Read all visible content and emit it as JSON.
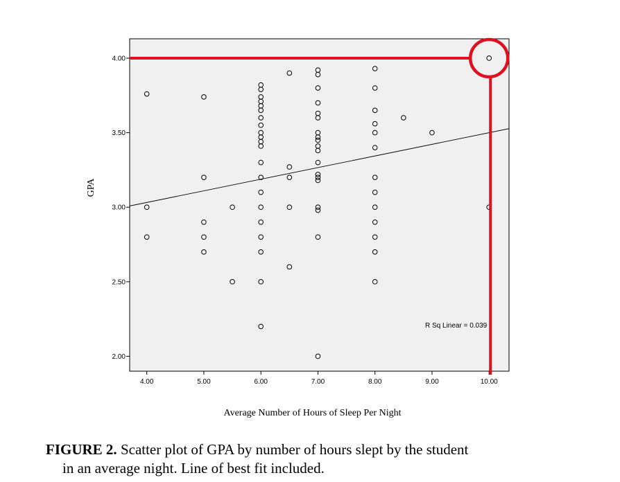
{
  "chart_data": {
    "type": "scatter",
    "xlabel": "Average Number of Hours of Sleep Per Night",
    "ylabel": "GPA",
    "xlim": [
      3.7,
      10.35
    ],
    "ylim": [
      1.9,
      4.13
    ],
    "x_ticks": [
      4,
      5,
      6,
      7,
      8,
      9,
      10
    ],
    "x_tick_labels": [
      "4.00",
      "5.00",
      "6.00",
      "7.00",
      "8.00",
      "9.00",
      "10.00"
    ],
    "y_ticks": [
      2,
      2.5,
      3,
      3.5,
      4
    ],
    "y_tick_labels": [
      "2.00",
      "2.50",
      "3.00",
      "3.50",
      "4.00"
    ],
    "grid": false,
    "fit_line": {
      "intercept": 2.72,
      "slope": 0.078
    },
    "annotation": "R Sq Linear = 0.039",
    "highlight_point": {
      "x": 10,
      "y": 4.0,
      "color": "#e01020"
    },
    "points": [
      {
        "x": 4,
        "y": 3.76
      },
      {
        "x": 4,
        "y": 3.0
      },
      {
        "x": 4,
        "y": 2.8
      },
      {
        "x": 5,
        "y": 3.74
      },
      {
        "x": 5,
        "y": 3.2
      },
      {
        "x": 5,
        "y": 2.9
      },
      {
        "x": 5,
        "y": 2.8
      },
      {
        "x": 5,
        "y": 2.7
      },
      {
        "x": 5.5,
        "y": 3.0
      },
      {
        "x": 5.5,
        "y": 2.5
      },
      {
        "x": 6,
        "y": 3.82
      },
      {
        "x": 6,
        "y": 3.79
      },
      {
        "x": 6,
        "y": 3.74
      },
      {
        "x": 6,
        "y": 3.71
      },
      {
        "x": 6,
        "y": 3.68
      },
      {
        "x": 6,
        "y": 3.65
      },
      {
        "x": 6,
        "y": 3.6
      },
      {
        "x": 6,
        "y": 3.55
      },
      {
        "x": 6,
        "y": 3.5
      },
      {
        "x": 6,
        "y": 3.47
      },
      {
        "x": 6,
        "y": 3.44
      },
      {
        "x": 6,
        "y": 3.41
      },
      {
        "x": 6,
        "y": 3.3
      },
      {
        "x": 6,
        "y": 3.2
      },
      {
        "x": 6,
        "y": 3.1
      },
      {
        "x": 6,
        "y": 3.0
      },
      {
        "x": 6,
        "y": 2.9
      },
      {
        "x": 6,
        "y": 2.8
      },
      {
        "x": 6,
        "y": 2.7
      },
      {
        "x": 6,
        "y": 2.5
      },
      {
        "x": 6,
        "y": 2.2
      },
      {
        "x": 6.5,
        "y": 3.9
      },
      {
        "x": 6.5,
        "y": 3.27
      },
      {
        "x": 6.5,
        "y": 3.2
      },
      {
        "x": 6.5,
        "y": 3.0
      },
      {
        "x": 6.5,
        "y": 2.6
      },
      {
        "x": 7,
        "y": 3.92
      },
      {
        "x": 7,
        "y": 3.89
      },
      {
        "x": 7,
        "y": 3.8
      },
      {
        "x": 7,
        "y": 3.7
      },
      {
        "x": 7,
        "y": 3.63
      },
      {
        "x": 7,
        "y": 3.6
      },
      {
        "x": 7,
        "y": 3.5
      },
      {
        "x": 7,
        "y": 3.47
      },
      {
        "x": 7,
        "y": 3.45
      },
      {
        "x": 7,
        "y": 3.41
      },
      {
        "x": 7,
        "y": 3.38
      },
      {
        "x": 7,
        "y": 3.3
      },
      {
        "x": 7,
        "y": 3.22
      },
      {
        "x": 7,
        "y": 3.2
      },
      {
        "x": 7,
        "y": 3.18
      },
      {
        "x": 7,
        "y": 3.0
      },
      {
        "x": 7,
        "y": 2.98
      },
      {
        "x": 7,
        "y": 2.8
      },
      {
        "x": 7,
        "y": 2.0
      },
      {
        "x": 8,
        "y": 3.93
      },
      {
        "x": 8,
        "y": 3.8
      },
      {
        "x": 8,
        "y": 3.65
      },
      {
        "x": 8,
        "y": 3.56
      },
      {
        "x": 8,
        "y": 3.5
      },
      {
        "x": 8,
        "y": 3.4
      },
      {
        "x": 8,
        "y": 3.2
      },
      {
        "x": 8,
        "y": 3.1
      },
      {
        "x": 8,
        "y": 3.0
      },
      {
        "x": 8,
        "y": 2.9
      },
      {
        "x": 8,
        "y": 2.8
      },
      {
        "x": 8,
        "y": 2.7
      },
      {
        "x": 8,
        "y": 2.5
      },
      {
        "x": 8.5,
        "y": 3.6
      },
      {
        "x": 9,
        "y": 3.5
      },
      {
        "x": 10,
        "y": 4.0
      },
      {
        "x": 10,
        "y": 3.0
      }
    ]
  },
  "caption": {
    "label": "FIGURE 2.",
    "text_line1": "Scatter plot of GPA by number of hours slept by the student",
    "text_line2": "in an average night.  Line of best fit included."
  }
}
